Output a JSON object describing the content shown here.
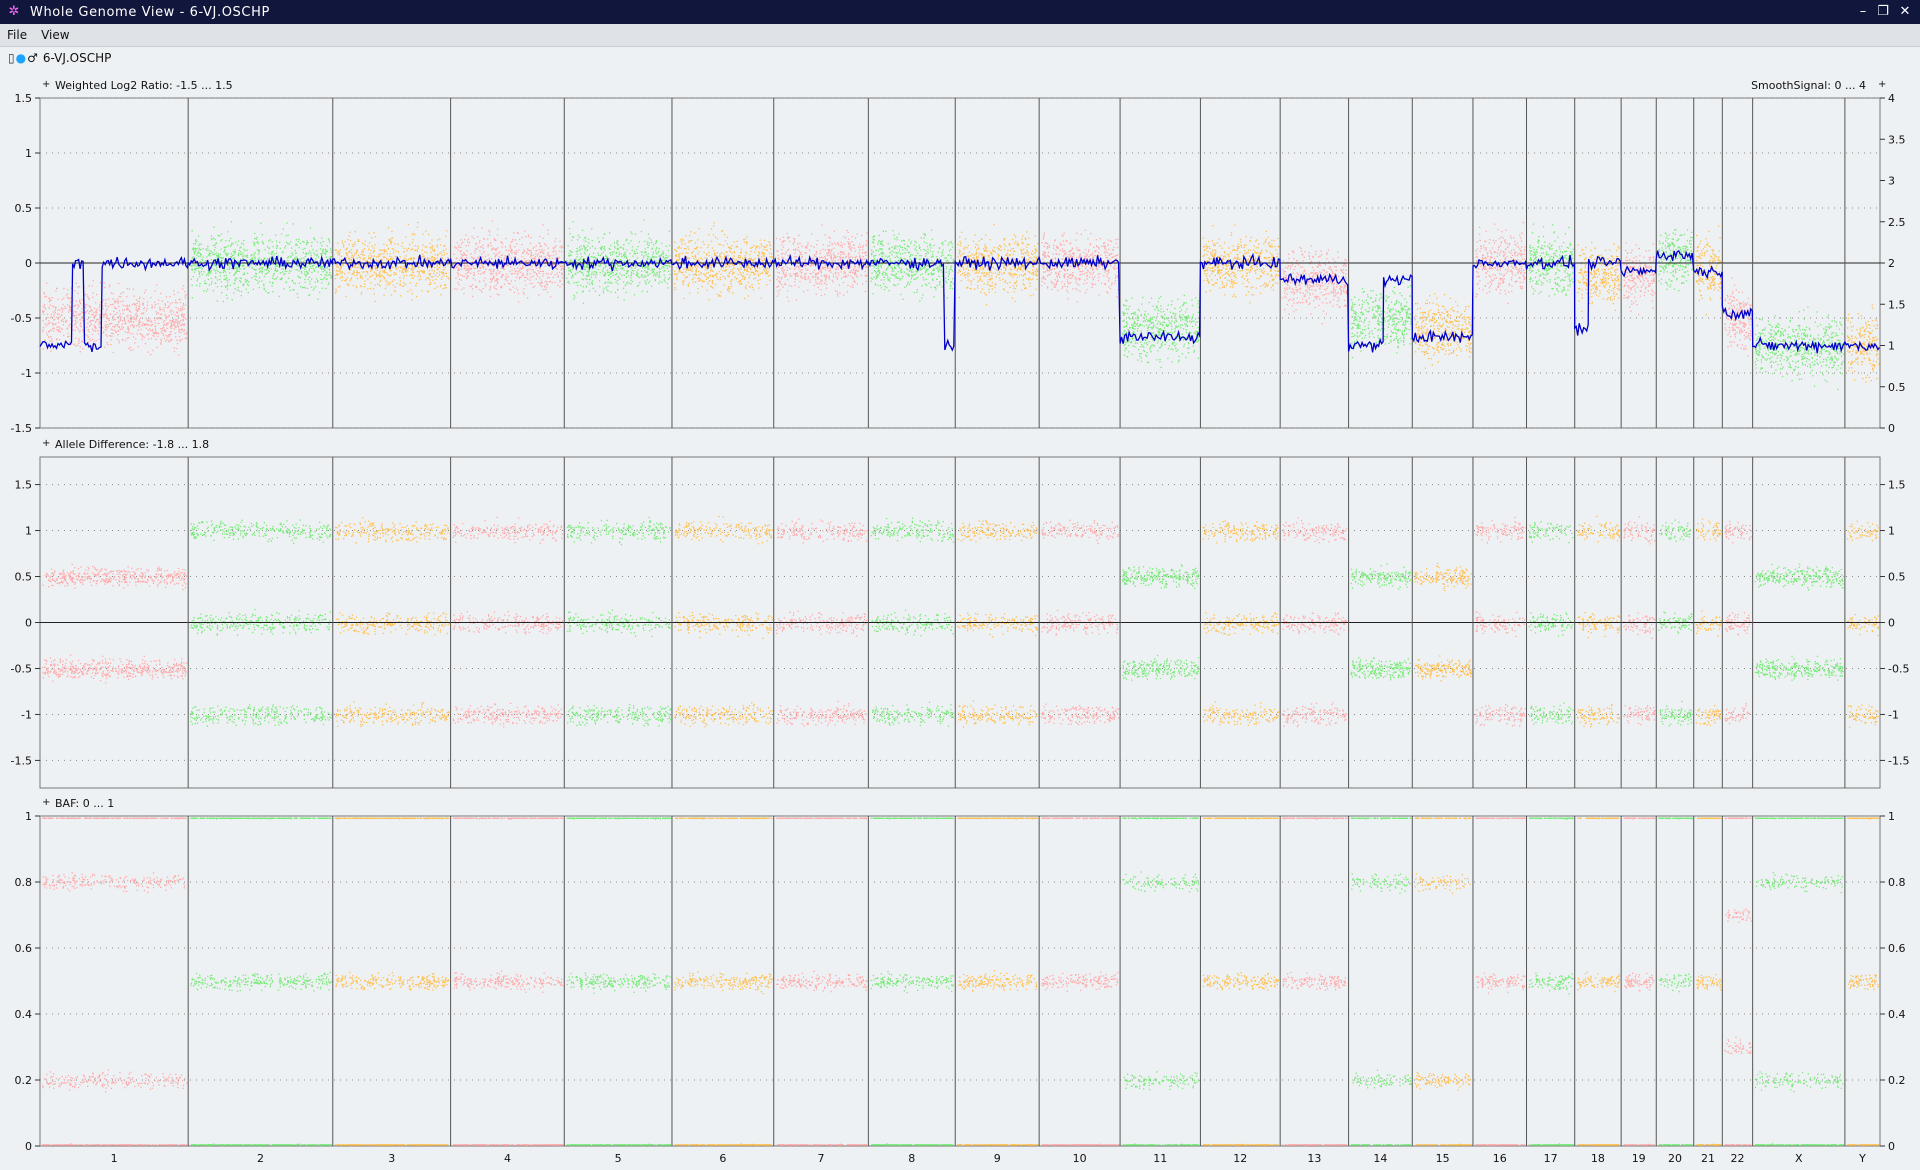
{
  "window": {
    "title": "Whole Genome View - 6-VJ.OSCHP"
  },
  "menu": [
    "File",
    "View"
  ],
  "file": {
    "name": "6-VJ.OSCHP"
  },
  "colors": {
    "pink": "#ffaaaa",
    "green": "#77ea77",
    "orange": "#ffbf50",
    "line": "#0000c8",
    "titlebar": "#11163d",
    "background": "#eef1f4"
  },
  "chromosomes": [
    {
      "name": "1",
      "size": 249
    },
    {
      "name": "2",
      "size": 243
    },
    {
      "name": "3",
      "size": 198
    },
    {
      "name": "4",
      "size": 191
    },
    {
      "name": "5",
      "size": 181
    },
    {
      "name": "6",
      "size": 171
    },
    {
      "name": "7",
      "size": 159
    },
    {
      "name": "8",
      "size": 146
    },
    {
      "name": "9",
      "size": 141
    },
    {
      "name": "10",
      "size": 136
    },
    {
      "name": "11",
      "size": 135
    },
    {
      "name": "12",
      "size": 134
    },
    {
      "name": "13",
      "size": 115
    },
    {
      "name": "14",
      "size": 107
    },
    {
      "name": "15",
      "size": 102
    },
    {
      "name": "16",
      "size": 90
    },
    {
      "name": "17",
      "size": 81
    },
    {
      "name": "18",
      "size": 78
    },
    {
      "name": "19",
      "size": 59
    },
    {
      "name": "20",
      "size": 63
    },
    {
      "name": "21",
      "size": 48
    },
    {
      "name": "22",
      "size": 51
    },
    {
      "name": "X",
      "size": 155
    },
    {
      "name": "Y",
      "size": 59
    }
  ],
  "panels": [
    {
      "id": "log2",
      "label": "Weighted Log2 Ratio: -1.5 ... 1.5",
      "ymin": -1.5,
      "ymax": 1.5,
      "left_ticks": [
        "1.5",
        "1",
        "0.5",
        "0",
        "-0.5",
        "-1",
        "-1.5"
      ],
      "right_label": "SmoothSignal: 0 ... 4",
      "right_ticks": [
        "4",
        "3.5",
        "3",
        "2.5",
        "2",
        "1.5",
        "1",
        "0.5",
        "0"
      ]
    },
    {
      "id": "allele",
      "label": "Allele Difference: -1.8 ... 1.8",
      "ymin": -1.8,
      "ymax": 1.8,
      "left_ticks": [
        "1.5",
        "1",
        "0.5",
        "0",
        "-0.5",
        "-1",
        "-1.5"
      ],
      "right_ticks": [
        "1.5",
        "1",
        "0.5",
        "0",
        "-0.5",
        "-1",
        "-1.5"
      ]
    },
    {
      "id": "baf",
      "label": "BAF: 0 ... 1",
      "ymin": 0,
      "ymax": 1,
      "left_ticks": [
        "1",
        "0.8",
        "0.6",
        "0.4",
        "0.2",
        "0"
      ],
      "right_ticks": [
        "1",
        "0.8",
        "0.6",
        "0.4",
        "0.2",
        "0"
      ]
    }
  ],
  "chart_data": {
    "type": "scatter",
    "x_axis": "chromosome",
    "smooth_signal_segments": [
      {
        "chrom": "1",
        "start": 0,
        "end": 0.22,
        "value": 1.0
      },
      {
        "chrom": "1",
        "start": 0.22,
        "end": 0.3,
        "value": 2.0
      },
      {
        "chrom": "1",
        "start": 0.3,
        "end": 0.42,
        "value": 1.0
      },
      {
        "chrom": "1",
        "start": 0.42,
        "end": 0.6,
        "value": 2.0
      },
      {
        "chrom": "1",
        "start": 0.6,
        "end": 1.0,
        "value": 2.0
      },
      {
        "chrom": "2",
        "start": 0,
        "end": 1,
        "value": 2.0
      },
      {
        "chrom": "3",
        "start": 0,
        "end": 1,
        "value": 2.0
      },
      {
        "chrom": "4",
        "start": 0,
        "end": 1,
        "value": 2.0
      },
      {
        "chrom": "5",
        "start": 0,
        "end": 1,
        "value": 2.0
      },
      {
        "chrom": "6",
        "start": 0,
        "end": 1,
        "value": 2.0
      },
      {
        "chrom": "7",
        "start": 0,
        "end": 1,
        "value": 2.0
      },
      {
        "chrom": "8",
        "start": 0,
        "end": 0.88,
        "value": 2.0
      },
      {
        "chrom": "8",
        "start": 0.88,
        "end": 1.0,
        "value": 1.0
      },
      {
        "chrom": "9",
        "start": 0,
        "end": 1,
        "value": 2.0
      },
      {
        "chrom": "10",
        "start": 0,
        "end": 1,
        "value": 2.0
      },
      {
        "chrom": "11",
        "start": 0,
        "end": 1,
        "value": 1.1
      },
      {
        "chrom": "12",
        "start": 0,
        "end": 1,
        "value": 2.0
      },
      {
        "chrom": "13",
        "start": 0,
        "end": 1,
        "value": 1.8
      },
      {
        "chrom": "14",
        "start": 0,
        "end": 0.55,
        "value": 1.0
      },
      {
        "chrom": "14",
        "start": 0.55,
        "end": 1.0,
        "value": 1.8
      },
      {
        "chrom": "15",
        "start": 0,
        "end": 1,
        "value": 1.1
      },
      {
        "chrom": "16",
        "start": 0,
        "end": 1,
        "value": 2.0
      },
      {
        "chrom": "17",
        "start": 0,
        "end": 1,
        "value": 2.0
      },
      {
        "chrom": "18",
        "start": 0,
        "end": 0.3,
        "value": 1.2
      },
      {
        "chrom": "18",
        "start": 0.3,
        "end": 1.0,
        "value": 2.0
      },
      {
        "chrom": "19",
        "start": 0,
        "end": 1,
        "value": 1.9
      },
      {
        "chrom": "20",
        "start": 0,
        "end": 1,
        "value": 2.1
      },
      {
        "chrom": "21",
        "start": 0,
        "end": 1,
        "value": 1.9
      },
      {
        "chrom": "22",
        "start": 0,
        "end": 1,
        "value": 1.4
      },
      {
        "chrom": "X",
        "start": 0,
        "end": 1,
        "value": 1.0
      },
      {
        "chrom": "Y",
        "start": 0,
        "end": 1,
        "value": 1.0
      }
    ],
    "log2_levels": {
      "1": -0.5,
      "2": 0.0,
      "3": 0.0,
      "4": 0.0,
      "5": 0.0,
      "6": 0.0,
      "7": 0.0,
      "8": 0.0,
      "9": 0.0,
      "10": 0.0,
      "11": -0.6,
      "12": 0.0,
      "13": -0.15,
      "14": -0.5,
      "15": -0.6,
      "16": 0.0,
      "17": 0.0,
      "18": -0.1,
      "19": -0.1,
      "20": 0.05,
      "21": -0.05,
      "22": -0.5,
      "X": -0.75,
      "Y": -0.75
    },
    "baf_bands": {
      "normal": [
        0,
        0.5,
        1
      ],
      "one_copy_loss": [
        0,
        0.2,
        0.8,
        1
      ],
      "gain": [
        0,
        0.3,
        0.7,
        1
      ]
    },
    "allele_difference_bands": {
      "normal": [
        -1,
        0,
        1
      ],
      "one_copy_loss": [
        -0.5,
        0.5
      ]
    }
  }
}
